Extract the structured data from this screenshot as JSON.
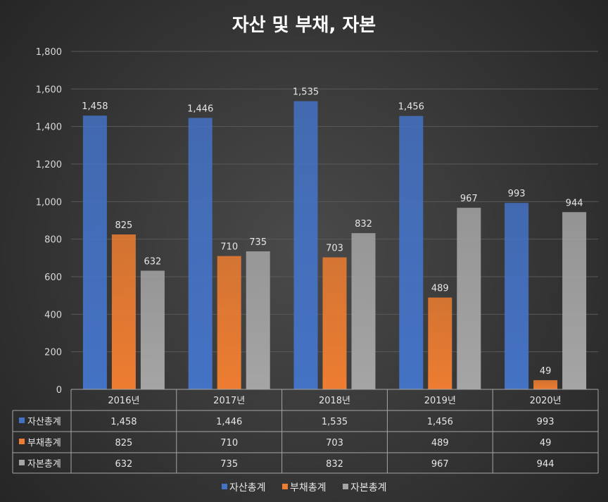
{
  "colors": {
    "asset": "#4472c4",
    "liability": "#ed7d31",
    "equity": "#a5a5a5",
    "grid": "#595959",
    "text": "#d9d9d9"
  },
  "chart_data": {
    "type": "bar",
    "title": "자산 및 부채, 자본",
    "categories": [
      "2016년",
      "2017년",
      "2018년",
      "2019년",
      "2020년"
    ],
    "ylim": [
      0,
      1800
    ],
    "yticks": [
      "0",
      "200",
      "400",
      "600",
      "800",
      "1,000",
      "1,200",
      "1,400",
      "1,600",
      "1,800"
    ],
    "ytick_values": [
      0,
      200,
      400,
      600,
      800,
      1000,
      1200,
      1400,
      1600,
      1800
    ],
    "series": [
      {
        "name": "자산총계",
        "color_key": "asset",
        "values": [
          1458,
          1446,
          1535,
          1456,
          993
        ],
        "labels": [
          "1,458",
          "1,446",
          "1,535",
          "1,456",
          "993"
        ]
      },
      {
        "name": "부채총계",
        "color_key": "liability",
        "values": [
          825,
          710,
          703,
          489,
          49
        ],
        "labels": [
          "825",
          "710",
          "703",
          "489",
          "49"
        ]
      },
      {
        "name": "자본총계",
        "color_key": "equity",
        "values": [
          632,
          735,
          832,
          967,
          944
        ],
        "labels": [
          "632",
          "735",
          "832",
          "967",
          "944"
        ]
      }
    ],
    "legend_position": "bottom",
    "data_table": true,
    "grid": true
  }
}
